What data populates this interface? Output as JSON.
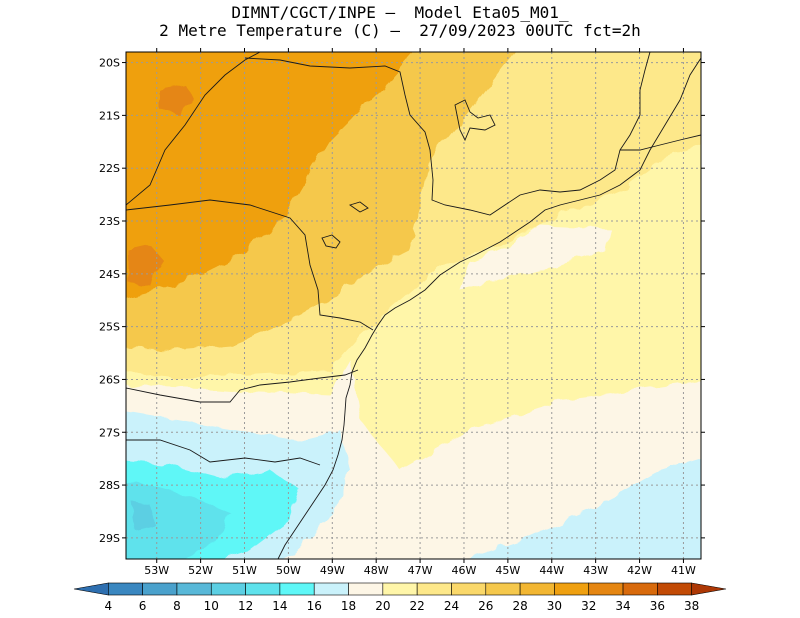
{
  "title": {
    "line1": "DIMNT/CGCT/INPE –  Model Eta05_M01_",
    "line2": "2 Metre Temperature (C) –  27/09/2023 00UTC fct=2h"
  },
  "map": {
    "lon_range": [
      -53.7,
      -40.6
    ],
    "lat_range": [
      -29.4,
      -19.8
    ],
    "lat_ticks": [
      {
        "value": -20,
        "label": "20S"
      },
      {
        "value": -21,
        "label": "21S"
      },
      {
        "value": -22,
        "label": "22S"
      },
      {
        "value": -23,
        "label": "23S"
      },
      {
        "value": -24,
        "label": "24S"
      },
      {
        "value": -25,
        "label": "25S"
      },
      {
        "value": -26,
        "label": "26S"
      },
      {
        "value": -27,
        "label": "27S"
      },
      {
        "value": -28,
        "label": "28S"
      },
      {
        "value": -29,
        "label": "29S"
      }
    ],
    "lon_ticks": [
      {
        "value": -53,
        "label": "53W"
      },
      {
        "value": -52,
        "label": "52W"
      },
      {
        "value": -51,
        "label": "51W"
      },
      {
        "value": -50,
        "label": "50W"
      },
      {
        "value": -49,
        "label": "49W"
      },
      {
        "value": -48,
        "label": "48W"
      },
      {
        "value": -47,
        "label": "47W"
      },
      {
        "value": -46,
        "label": "46W"
      },
      {
        "value": -45,
        "label": "45W"
      },
      {
        "value": -44,
        "label": "44W"
      },
      {
        "value": -43,
        "label": "43W"
      },
      {
        "value": -42,
        "label": "42W"
      },
      {
        "value": -41,
        "label": "41W"
      }
    ],
    "grid": true
  },
  "colorbar": {
    "levels": [
      4,
      6,
      8,
      10,
      12,
      14,
      16,
      18,
      20,
      22,
      24,
      26,
      28,
      30,
      32,
      34,
      36,
      38
    ],
    "colors": [
      "#2e6fb0",
      "#3a87c0",
      "#4aa1cc",
      "#58b8d8",
      "#5ccfe3",
      "#5ee2ec",
      "#5ef7f7",
      "#caf2fb",
      "#fdf6e6",
      "#fff6a9",
      "#fde88a",
      "#fad86a",
      "#f5c84c",
      "#f2b632",
      "#efa010",
      "#e58612",
      "#d86a0c",
      "#c24a05",
      "#ad3805"
    ]
  }
}
